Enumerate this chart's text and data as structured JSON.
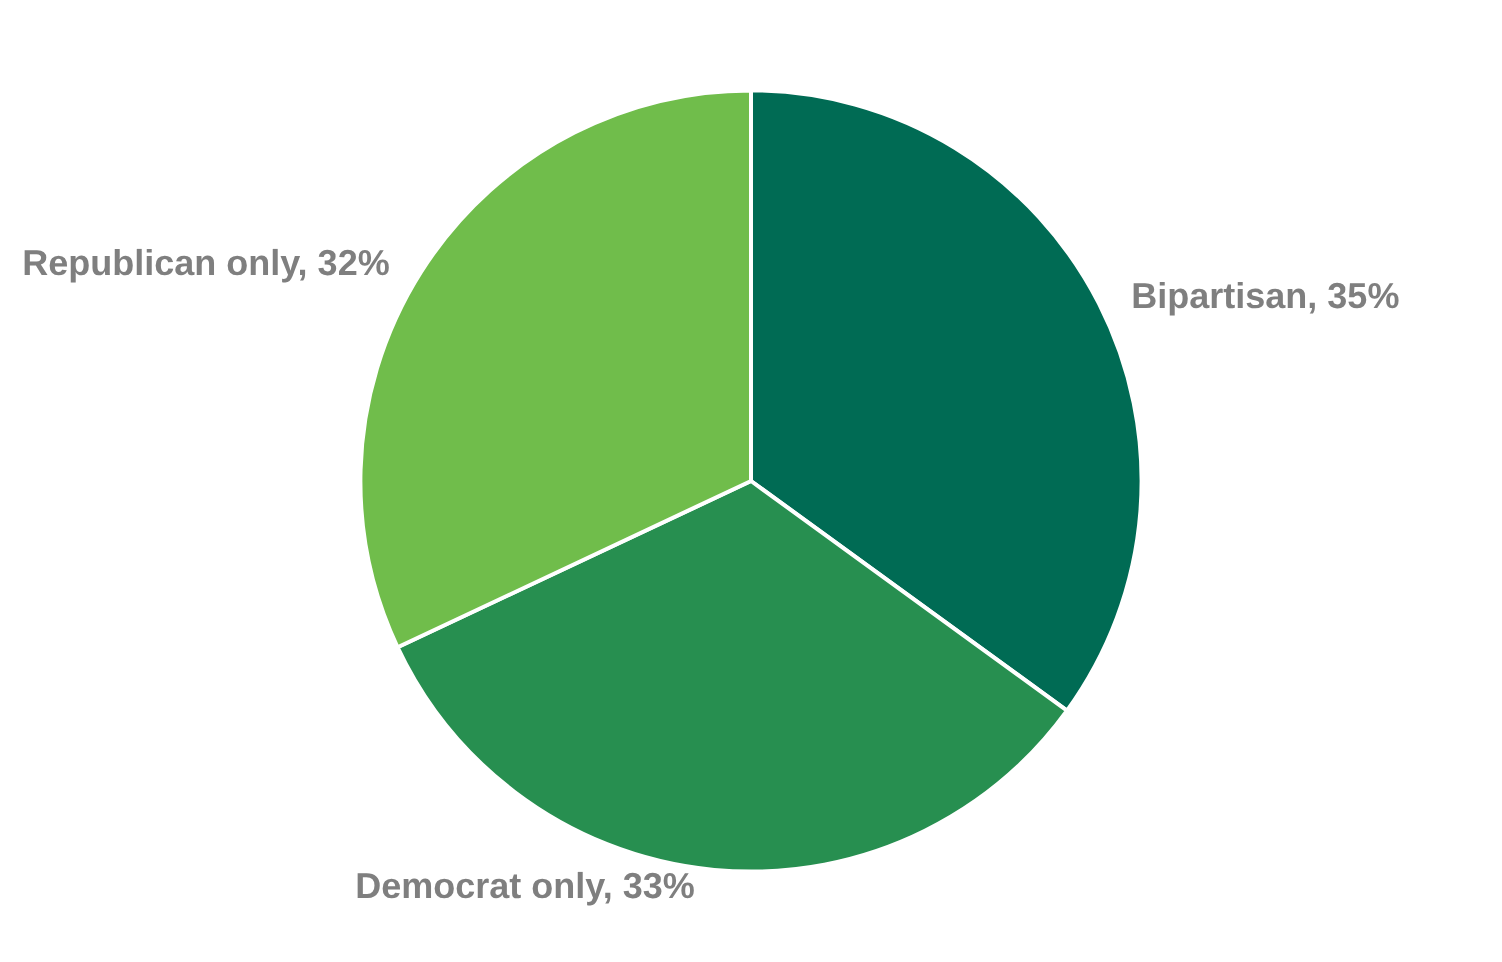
{
  "chart_data": {
    "type": "pie",
    "categories": [
      "Bipartisan",
      "Democrat only",
      "Republican only"
    ],
    "values": [
      35,
      33,
      32
    ],
    "value_labels": [
      "35%",
      "33%",
      "32%"
    ],
    "colors": [
      "#006b54",
      "#278f50",
      "#70bd4b"
    ],
    "data_labels": true,
    "legend": false
  }
}
